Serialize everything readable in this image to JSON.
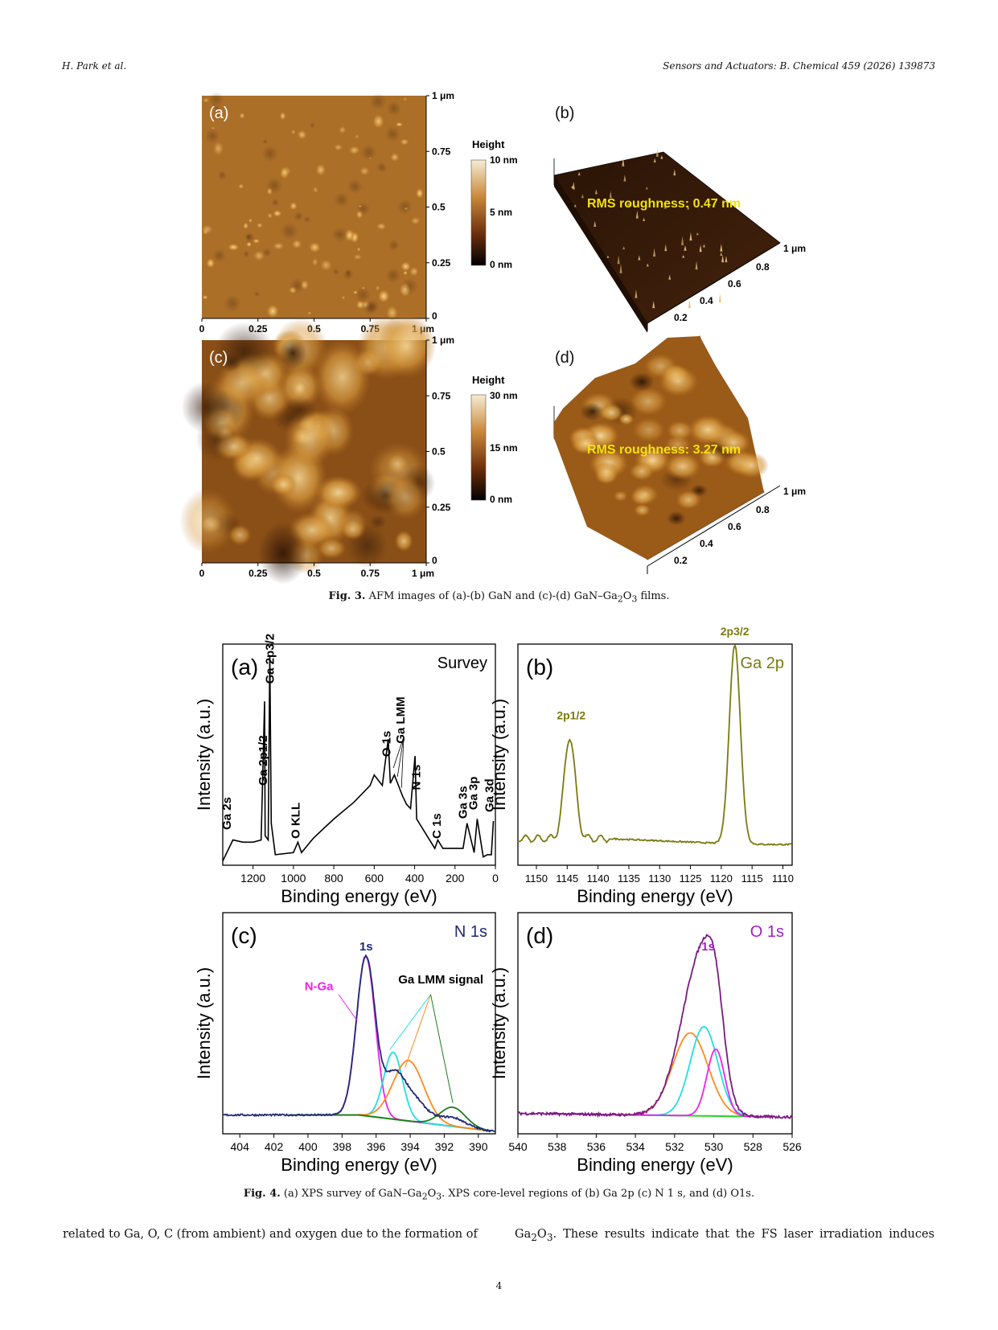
{
  "header": {
    "left": "H. Park et al.",
    "right": "Sensors and Actuators: B. Chemical 459 (2026) 139873"
  },
  "fig3": {
    "caption_label": "Fig. 3.",
    "caption_pre": "AFM images of (a)-(b) GaN and (c)-(d) GaN–Ga",
    "caption_sub1": "2",
    "caption_mid": "O",
    "caption_sub2": "3",
    "caption_post": " films.",
    "panel_labels": [
      "(a)",
      "(b)",
      "(c)",
      "(d)"
    ],
    "x_ticks": [
      "0",
      "0.25",
      "0.5",
      "0.75",
      "1 μm"
    ],
    "y_ticks": [
      "0",
      "0.25",
      "0.5",
      "0.75",
      "1 μm"
    ],
    "height_title": "Height",
    "scale_a": [
      "10 nm",
      "5 nm",
      "0 nm"
    ],
    "scale_c": [
      "30 nm",
      "15 nm",
      "0 nm"
    ],
    "rms_b": "RMS roughness: 0.47 nm",
    "rms_d": "RMS roughness: 3.27 nm",
    "axis3d_right": [
      "1 μm",
      "0.8",
      "0.6"
    ],
    "axis3d_front": [
      "0.4",
      "0.2"
    ]
  },
  "fig4": {
    "caption_label": "Fig. 4.",
    "caption_pre": "(a) XPS survey of GaN–Ga",
    "caption_sub1": "2",
    "caption_mid": "O",
    "caption_sub2": "3",
    "caption_post": ". XPS core-level regions of (b) Ga 2p (c) N 1 s, and (d) O1s.",
    "ylabel": "Intensity (a.u.)",
    "xlabel": "Binding energy (eV)"
  },
  "chart_data": [
    {
      "type": "line",
      "panel": "(a)",
      "title": "Survey",
      "xlabel": "Binding energy (eV)",
      "ylabel": "Intensity (a.u.)",
      "xlim": [
        1350,
        0
      ],
      "x_ticks": [
        1200,
        1000,
        800,
        600,
        400,
        200,
        0
      ],
      "peak_labels": [
        "Ga 2s",
        "Ga 2p1/2",
        "Ga 2p3/2",
        "O KLL",
        "O 1s",
        "Ga LMM",
        "N 1s",
        "C 1s",
        "Ga 3s",
        "Ga 3p",
        "Ga 3d"
      ],
      "series": [
        {
          "x": [
            1350,
            1300,
            1250,
            1200,
            1160,
            1143,
            1140,
            1125,
            1117,
            1110,
            1090,
            1000,
            978,
            960,
            900,
            800,
            700,
            620,
            600,
            560,
            531,
            520,
            500,
            460,
            440,
            420,
            398,
            390,
            300,
            285,
            260,
            200,
            160,
            140,
            105,
            90,
            60,
            40,
            20,
            10
          ],
          "y": [
            0.02,
            0.12,
            0.11,
            0.11,
            0.12,
            0.78,
            0.14,
            0.12,
            1.0,
            0.2,
            0.05,
            0.06,
            0.11,
            0.06,
            0.13,
            0.22,
            0.3,
            0.38,
            0.43,
            0.38,
            0.6,
            0.39,
            0.43,
            0.33,
            0.29,
            0.27,
            0.52,
            0.22,
            0.08,
            0.12,
            0.08,
            0.08,
            0.08,
            0.2,
            0.06,
            0.22,
            0.04,
            0.05,
            0.05,
            0.21
          ]
        }
      ]
    },
    {
      "type": "line",
      "panel": "(b)",
      "title": "Ga 2p",
      "xlabel": "Binding energy (eV)",
      "ylabel": "Intensity (a.u.)",
      "xlim": [
        1153,
        1108.5
      ],
      "x_ticks": [
        1150,
        1145,
        1140,
        1135,
        1130,
        1125,
        1120,
        1115,
        1110
      ],
      "peak_labels": [
        "2p1/2",
        "2p3/2"
      ],
      "peaks": [
        {
          "label": "2p1/2",
          "center": 1144.6,
          "height": 0.46
        },
        {
          "label": "2p3/2",
          "center": 1117.8,
          "height": 0.9
        }
      ]
    },
    {
      "type": "line",
      "panel": "(c)",
      "title": "N 1s",
      "xlabel": "Binding energy (eV)",
      "ylabel": "Intensity (a.u.)",
      "xlim": [
        405,
        389
      ],
      "x_ticks": [
        404,
        402,
        400,
        398,
        396,
        394,
        392,
        390
      ],
      "annotations": [
        "1s",
        "N-Ga",
        "Ga LMM signal"
      ],
      "components": [
        {
          "name": "N-Ga",
          "center": 396.6,
          "height": 1.0
        },
        {
          "name": "Ga LMM 1",
          "center": 395.0,
          "height": 0.42
        },
        {
          "name": "Ga LMM 2",
          "center": 394.1,
          "height": 0.38
        },
        {
          "name": "Ga LMM 3",
          "center": 391.5,
          "height": 0.12
        }
      ]
    },
    {
      "type": "line",
      "panel": "(d)",
      "title": "O 1s",
      "xlabel": "Binding energy (eV)",
      "ylabel": "Intensity (a.u.)",
      "xlim": [
        540,
        526
      ],
      "x_ticks": [
        540,
        538,
        536,
        534,
        532,
        530,
        528,
        526
      ],
      "annotations": [
        "1s"
      ],
      "components": [
        {
          "center": 531.2,
          "height": 0.52
        },
        {
          "center": 530.5,
          "height": 0.56
        },
        {
          "center": 529.9,
          "height": 0.42
        }
      ]
    }
  ],
  "body": {
    "left": "related to Ga, O, C (from ambient) and oxygen due to the formation of",
    "right_pre": "Ga",
    "right_sub1": "2",
    "right_mid": "O",
    "right_sub2": "3",
    "right_post": ". These results indicate that the FS laser irradiation induces"
  },
  "page_number": "4"
}
